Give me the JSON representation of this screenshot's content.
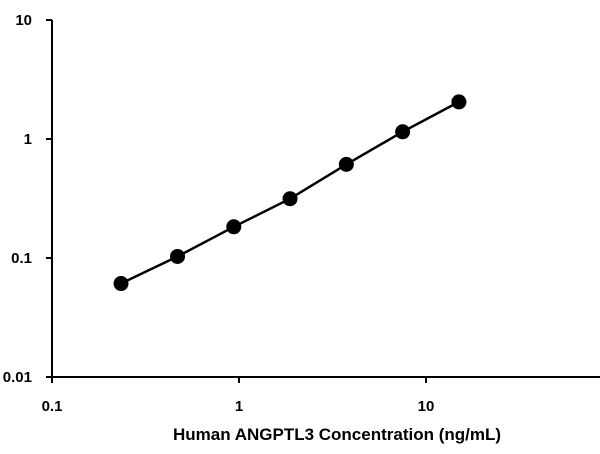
{
  "chart_data": {
    "type": "line",
    "title": "",
    "xlabel": "Human ANGPTL3 Concentration (ng/mL)",
    "ylabel": "",
    "x_scale": "log",
    "y_scale": "log",
    "xlim": [
      0.1,
      100
    ],
    "ylim": [
      0.01,
      10
    ],
    "x_ticks": [
      0.1,
      1,
      10
    ],
    "x_tick_labels": [
      "0.1",
      "1",
      "10"
    ],
    "y_ticks": [
      0.01,
      0.1,
      1,
      10
    ],
    "y_tick_labels": [
      "0.01",
      "0.1",
      "1",
      "10"
    ],
    "grid": false,
    "legend": "none",
    "series": [
      {
        "x": [
          0.234,
          0.469,
          0.938,
          1.875,
          3.75,
          7.5,
          15
        ],
        "y": [
          0.061,
          0.103,
          0.183,
          0.315,
          0.612,
          1.15,
          2.05
        ],
        "color": "#000000",
        "marker": "circle"
      }
    ]
  }
}
